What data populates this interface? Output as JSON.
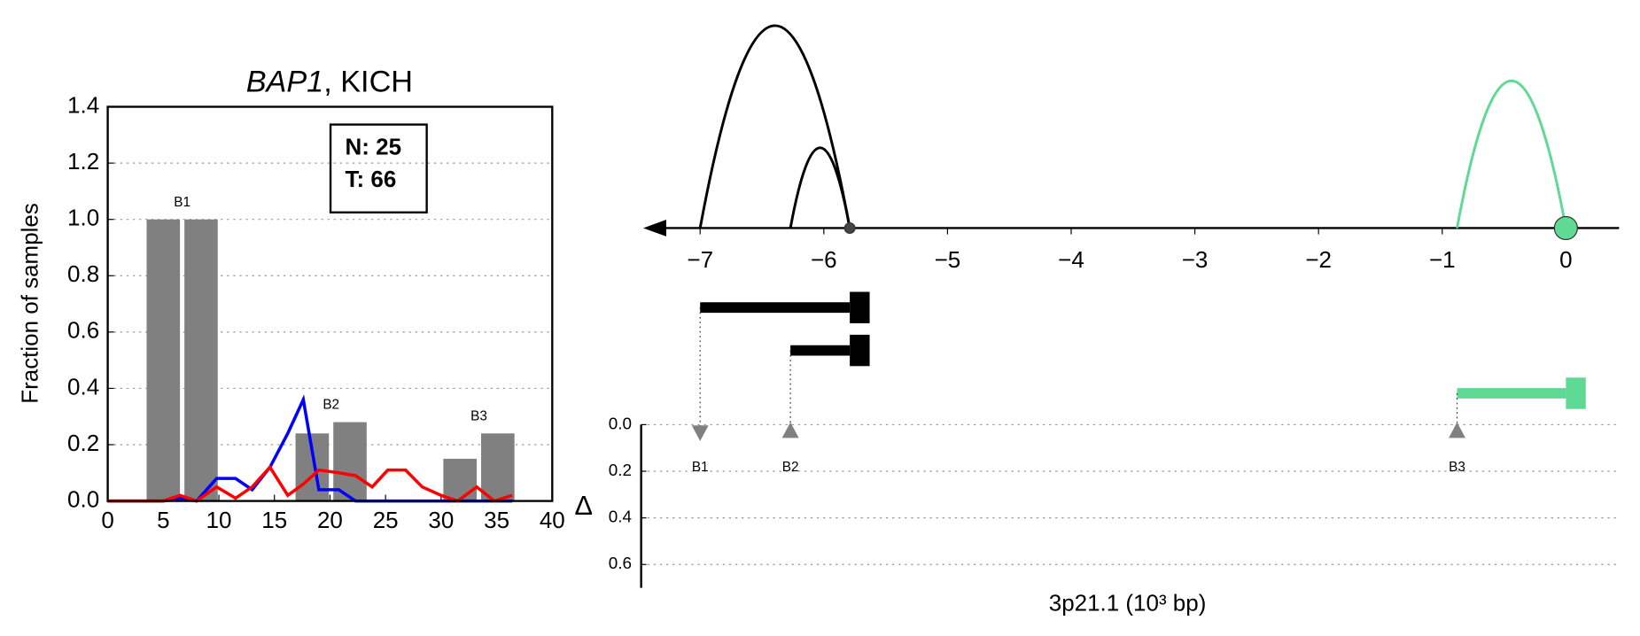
{
  "chart_data": [
    {
      "type": "bar_line",
      "title_gene": "BAP1",
      "title_rest": ", KICH",
      "ylabel": "Fraction of samples",
      "xlim": [
        0,
        40
      ],
      "ylim": [
        0,
        1.4
      ],
      "xticks": [
        0,
        5,
        10,
        15,
        20,
        25,
        30,
        35,
        40
      ],
      "yticks": [
        {
          "value": 0,
          "label": "0.0"
        },
        {
          "value": 0.2,
          "label": "0.2"
        },
        {
          "value": 0.4,
          "label": "0.4"
        },
        {
          "value": 0.6,
          "label": "0.6"
        },
        {
          "value": 0.8,
          "label": "0.8"
        },
        {
          "value": 1.0,
          "label": "1.0"
        },
        {
          "value": 1.2,
          "label": "1.2"
        },
        {
          "value": 1.4,
          "label": "1.4"
        }
      ],
      "grid": true,
      "legend_text": [
        "N: 25",
        "T: 66"
      ],
      "bar_color": "#808080",
      "bar_groups": [
        {
          "label": "B1",
          "x_start": [
            3.5,
            6.9
          ],
          "x_end": [
            6.5,
            9.9
          ],
          "values": [
            1.0,
            1.0
          ]
        },
        {
          "label": "B2",
          "x_start": [
            16.9,
            20.3
          ],
          "x_end": [
            19.9,
            23.3
          ],
          "values": [
            0.24,
            0.28
          ]
        },
        {
          "label": "B3",
          "x_start": [
            30.2,
            33.6
          ],
          "x_end": [
            33.2,
            36.6
          ],
          "values": [
            0.15,
            0.24
          ]
        }
      ],
      "x": [
        0,
        5,
        6.5,
        8,
        9.8,
        11.5,
        13,
        14.6,
        16.2,
        17.6,
        19,
        20.8,
        22.3,
        23.8,
        25.2,
        26.8,
        28.3,
        30,
        31.5,
        33.2,
        34.8,
        36.4
      ],
      "series": [
        {
          "color": "#0000ff",
          "values": [
            0,
            0,
            0.01,
            0,
            0.08,
            0.08,
            0.04,
            0.12,
            0.24,
            0.36,
            0.04,
            0.04,
            0,
            0,
            0,
            0,
            0,
            0,
            0,
            0,
            0,
            0
          ]
        },
        {
          "color": "#ff0000",
          "values": [
            0,
            0,
            0.02,
            0,
            0.05,
            0.01,
            0.05,
            0.12,
            0.02,
            0.06,
            0.11,
            0.1,
            0.09,
            0.05,
            0.11,
            0.11,
            0.05,
            0.02,
            0,
            0.05,
            0,
            0.02
          ]
        }
      ]
    },
    {
      "type": "splicing",
      "xlabel": "3p21.1 (10³ bp)",
      "xlim": [
        -7.46,
        0.43
      ],
      "xticks": [
        {
          "value": -7,
          "label": "−7"
        },
        {
          "value": -6,
          "label": "−6"
        },
        {
          "value": -5,
          "label": "−5"
        },
        {
          "value": -4,
          "label": "−4"
        },
        {
          "value": -3,
          "label": "−3"
        },
        {
          "value": -2,
          "label": "−2"
        },
        {
          "value": -1,
          "label": "−1"
        },
        0
      ],
      "junctions": {
        "start": [
          -7.0,
          -6.27,
          -0.88
        ],
        "end": [
          -5.79,
          -5.79,
          0.0
        ],
        "colors": [
          "#000000",
          "#000000",
          "#5fd993"
        ]
      },
      "sites": {
        "x": [
          -5.79,
          0.0
        ],
        "colors": [
          "#444444",
          "#5fd993"
        ]
      },
      "delta": {
        "ylabel": "Δ",
        "ylim": [
          0,
          0.7
        ],
        "yticks": [
          {
            "value": 0,
            "label": "0.0"
          },
          {
            "value": 0.2,
            "label": "0.2"
          },
          {
            "value": 0.4,
            "label": "0.4"
          },
          {
            "value": 0.6,
            "label": "0.6"
          }
        ],
        "labels": [
          "B1",
          "B2",
          "B3"
        ],
        "x": [
          -7.0,
          -6.27,
          -0.88
        ],
        "values": [
          0.03,
          0.03,
          0.03
        ],
        "direction": [
          "down",
          "up",
          "up"
        ],
        "color": "#808080"
      }
    }
  ]
}
